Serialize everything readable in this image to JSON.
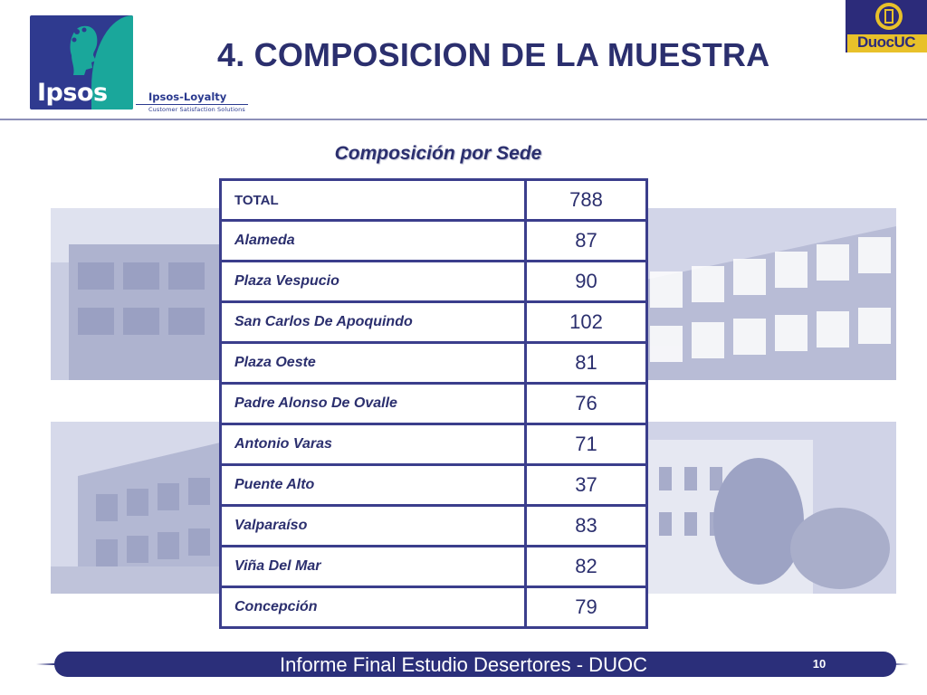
{
  "header": {
    "title": "4. COMPOSICION DE LA MUESTRA",
    "ipsos_logo_text": "Ipsos",
    "loyalty_name": "Ipsos-Loyalty",
    "loyalty_tagline": "Customer Satisfaction Solutions",
    "duoc_logo_text": "DuocUC"
  },
  "subtitle": "Composición por Sede",
  "table": {
    "rows": [
      {
        "label": "TOTAL",
        "value": "788"
      },
      {
        "label": "Alameda",
        "value": "87"
      },
      {
        "label": "Plaza Vespucio",
        "value": "90"
      },
      {
        "label": "San Carlos De Apoquindo",
        "value": "102"
      },
      {
        "label": "Plaza Oeste",
        "value": "81"
      },
      {
        "label": "Padre Alonso De Ovalle",
        "value": "76"
      },
      {
        "label": "Antonio Varas",
        "value": "71"
      },
      {
        "label": "Puente Alto",
        "value": "37"
      },
      {
        "label": "Valparaíso",
        "value": "83"
      },
      {
        "label": "Viña Del Mar",
        "value": "82"
      },
      {
        "label": "Concepción",
        "value": "79"
      }
    ]
  },
  "footer": {
    "text": "Informe Final Estudio Desertores - DUOC",
    "page_number": "10"
  },
  "colors": {
    "navy": "#2b2f6e",
    "table_border": "#3b3e8c",
    "footer_bar": "#2b2f7a",
    "ipsos_blue": "#2f3a8f",
    "ipsos_teal": "#1aa79b",
    "duoc_gold": "#e8c12a"
  }
}
